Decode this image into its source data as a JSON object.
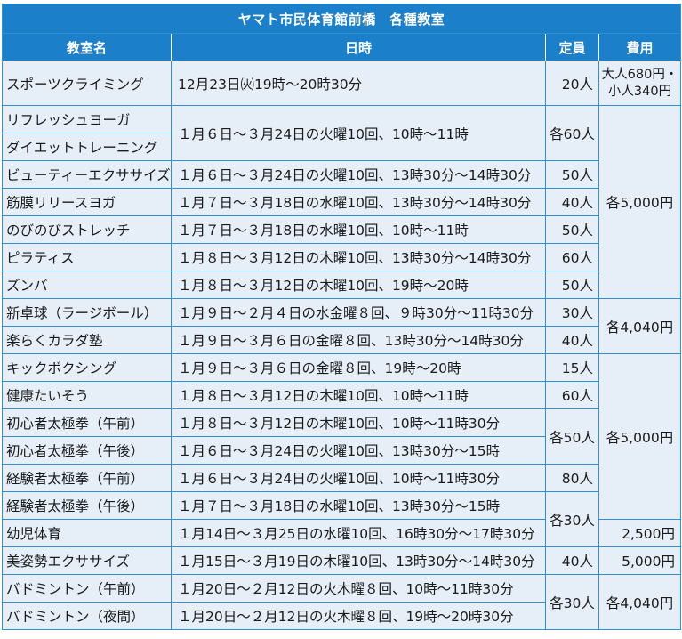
{
  "title": "ヤマト市民体育館前橋　各種教室",
  "headers": {
    "name": "教室名",
    "date": "日時",
    "capacity": "定員",
    "fee": "費用"
  },
  "rows": [
    {
      "name": "スポーツクライミング",
      "date": "12月23日㈫19時～20時30分",
      "capacity": "20人",
      "fee_line1": "大人680円・",
      "fee_line2": "小人340円"
    },
    {
      "name": "リフレッシュヨーガ",
      "date": "１月６日～３月24日の火曜10回、10時～11時",
      "capacity": "各60人",
      "fee": "各5,000円"
    },
    {
      "name": "ダイエットトレーニング"
    },
    {
      "name": "ビューティーエクササイズ",
      "date": "１月６日～３月24日の火曜10回、13時30分～14時30分",
      "capacity": "50人"
    },
    {
      "name": "筋膜リリースヨガ",
      "date": "１月７日～３月18日の水曜10回、13時30分～14時30分",
      "capacity": "40人"
    },
    {
      "name": "のびのびストレッチ",
      "date": "１月７日～３月18日の水曜10回、10時～11時",
      "capacity": "50人"
    },
    {
      "name": "ピラティス",
      "date": "１月８日～３月12日の木曜10回、13時30分～14時30分",
      "capacity": "60人"
    },
    {
      "name": "ズンバ",
      "date": "１月８日～３月12日の木曜10回、19時～20時",
      "capacity": "50人"
    },
    {
      "name": "新卓球（ラージボール）",
      "date": "１月９日～２月４日の水金曜８回、９時30分～11時30分",
      "capacity": "30人",
      "fee": "各4,040円"
    },
    {
      "name": "楽らくカラダ塾",
      "date": "１月９日～３月６日の金曜８回、13時30分～14時30分",
      "capacity": "40人"
    },
    {
      "name": "キックボクシング",
      "date": "１月９日～３月６日の金曜８回、19時～20時",
      "capacity": "15人",
      "fee": "各5,000円"
    },
    {
      "name": "健康たいそう",
      "date": "１月８日～３月12日の木曜10回、10時～11時",
      "capacity": "60人"
    },
    {
      "name": "初心者太極拳（午前）",
      "date": "１月８日～３月12日の木曜10回、10時～11時30分",
      "capacity": "各50人"
    },
    {
      "name": "初心者太極拳（午後）",
      "date": "１月６日～３月24日の火曜10回、13時30分～15時"
    },
    {
      "name": "経験者太極拳（午前）",
      "date": "１月６日～３月24日の火曜10回、10時～11時30分",
      "capacity": "80人"
    },
    {
      "name": "経験者太極拳（午後）",
      "date": "１月７日～３月18日の水曜10回、13時30分～15時",
      "capacity": "各30人"
    },
    {
      "name": "幼児体育",
      "date": "１月14日～３月25日の水曜10回、16時30分～17時30分",
      "fee": "2,500円"
    },
    {
      "name": "美姿勢エクササイズ",
      "date": "１月15日～３月19日の木曜10回、13時30分～14時30分",
      "capacity": "40人",
      "fee": "5,000円"
    },
    {
      "name": "バドミントン（午前）",
      "date": "１月20日～２月12日の火木曜８回、10時～11時30分",
      "capacity": "各30人",
      "fee": "各4,040円"
    },
    {
      "name": "バドミントン（夜間）",
      "date": "１月20日～２月12日の火木曜８回、19時～20時30分"
    }
  ]
}
